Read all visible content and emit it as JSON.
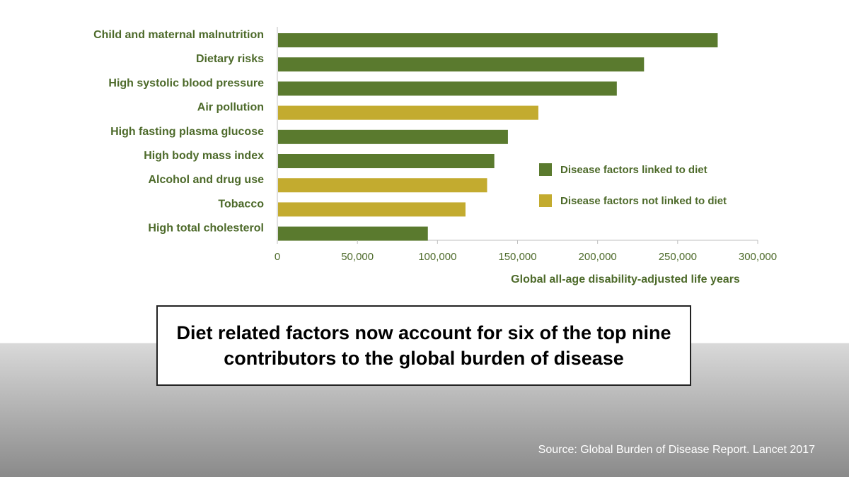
{
  "chart_data": {
    "type": "bar",
    "orientation": "horizontal",
    "categories": [
      "Child and maternal malnutrition",
      "Dietary risks",
      "High systolic blood pressure",
      "Air pollution",
      "High fasting plasma glucose",
      "High body mass index",
      "Alcohol and drug use",
      "Tobacco",
      "High total cholesterol"
    ],
    "values": [
      275000,
      229000,
      212000,
      163000,
      144000,
      135500,
      131000,
      117500,
      94000
    ],
    "series_membership": [
      "diet",
      "diet",
      "diet",
      "not_diet",
      "diet",
      "diet",
      "not_diet",
      "not_diet",
      "diet"
    ],
    "series": [
      {
        "key": "diet",
        "name": "Disease factors linked to diet",
        "color": "#5a7a2e"
      },
      {
        "key": "not_diet",
        "name": "Disease factors not linked to diet",
        "color": "#c3ab2f"
      }
    ],
    "xlabel": "Global all-age disability-adjusted life years",
    "ylabel": "",
    "xlim": [
      0,
      300000
    ],
    "x_ticks": [
      "0",
      "50,000",
      "100,000",
      "150,000",
      "200,000",
      "250,000",
      "300,000"
    ],
    "grid": false,
    "legend_position": "right"
  },
  "callout": {
    "text": "Diet related factors now account for six of the top nine contributors to the global burden of disease"
  },
  "source": "Source: Global Burden of Disease Report. Lancet 2017"
}
